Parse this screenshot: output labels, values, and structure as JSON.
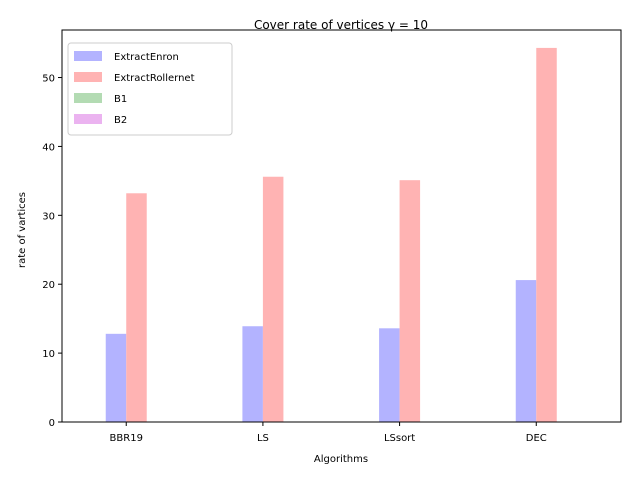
{
  "chart_data": {
    "type": "bar",
    "title": "Cover rate of vertices γ = 10",
    "xlabel": "Algorithms",
    "ylabel": "rate of vartices",
    "categories": [
      "BBR19",
      "LS",
      "LSsort",
      "DEC"
    ],
    "series": [
      {
        "name": "ExtractEnron",
        "color": "#b3b3ff",
        "values": [
          12.8,
          13.9,
          13.6,
          20.6
        ]
      },
      {
        "name": "ExtractRollernet",
        "color": "#ffb3b3",
        "values": [
          33.2,
          35.6,
          35.1,
          54.3
        ]
      },
      {
        "name": "B1",
        "color": "#b3dbb3",
        "values": [
          0,
          0,
          0,
          0
        ]
      },
      {
        "name": "B2",
        "color": "#ebb3f0",
        "values": [
          0,
          0,
          0,
          0
        ]
      }
    ],
    "ylim": [
      0,
      56.9
    ],
    "yticks": [
      0,
      10,
      20,
      30,
      40,
      50
    ],
    "legend_position": "top-left",
    "grid": false
  }
}
